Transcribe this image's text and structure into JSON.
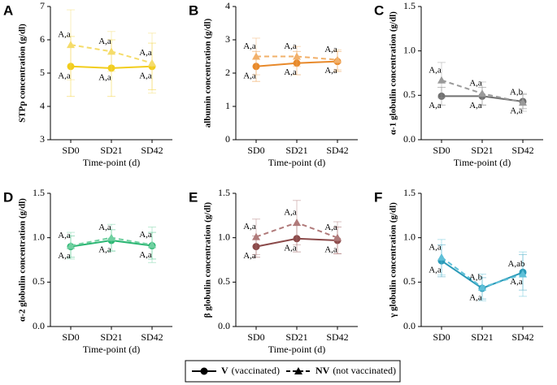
{
  "legend": [
    {
      "name": "V",
      "description": "(vaccinated)",
      "marker": "circle",
      "dashed": false
    },
    {
      "name": "NV",
      "description": "(not vaccinated)",
      "marker": "triangle",
      "dashed": true
    }
  ],
  "chart_data": [
    {
      "type": "line",
      "panel": "A",
      "y_label": "STPp concentration (g/dl)",
      "x_label": "Time-point (d)",
      "categories": [
        "SD0",
        "SD21",
        "SD42"
      ],
      "ylim": [
        3,
        7
      ],
      "yticks": [
        3,
        4,
        5,
        6,
        7
      ],
      "series": [
        {
          "color": "#f2cd1c",
          "values": [
            5.2,
            5.15,
            5.2
          ],
          "errors": [
            0.9,
            0.85,
            0.7
          ],
          "labels": [
            "A,a",
            "A,a",
            "A,a"
          ]
        },
        {
          "color": "#f5dc6a",
          "values": [
            5.85,
            5.65,
            5.3
          ],
          "errors": [
            1.05,
            0.6,
            0.9
          ],
          "labels": [
            "A,a",
            "A,a",
            "A,a"
          ]
        }
      ]
    },
    {
      "type": "line",
      "panel": "B",
      "y_label": "albumin concentration (g/dl)",
      "x_label": "Time-point (d)",
      "categories": [
        "SD0",
        "SD21",
        "SD42"
      ],
      "ylim": [
        0,
        4
      ],
      "yticks": [
        0,
        1,
        2,
        3,
        4
      ],
      "series": [
        {
          "color": "#e8892a",
          "values": [
            2.2,
            2.3,
            2.35
          ],
          "errors": [
            0.45,
            0.35,
            0.3
          ],
          "labels": [
            "A,a",
            "A,a",
            "A,a"
          ]
        },
        {
          "color": "#f2b06a",
          "values": [
            2.5,
            2.5,
            2.4
          ],
          "errors": [
            0.55,
            0.3,
            0.3
          ],
          "labels": [
            "A,a",
            "A,a",
            "A,a"
          ]
        }
      ]
    },
    {
      "type": "line",
      "panel": "C",
      "y_label": "α-1 globulin concentration (g/dl)",
      "x_label": "Time-point (d)",
      "categories": [
        "SD0",
        "SD21",
        "SD42"
      ],
      "ylim": [
        0,
        1.5
      ],
      "yticks": [
        {
          "value": 0,
          "label": "0.0"
        },
        0.5,
        {
          "value": 1,
          "label": "1.0"
        },
        1.5
      ],
      "series": [
        {
          "color": "#707070",
          "values": [
            0.49,
            0.49,
            0.43
          ],
          "errors": [
            0.1,
            0.1,
            0.08
          ],
          "labels": [
            "A,a",
            "A,a",
            "A,a"
          ]
        },
        {
          "color": "#9a9a9a",
          "values": [
            0.67,
            0.52,
            0.42
          ],
          "errors": [
            0.2,
            0.13,
            0.1
          ],
          "labels": [
            "A,a",
            "A,a",
            "A,b"
          ]
        }
      ]
    },
    {
      "type": "line",
      "panel": "D",
      "y_label": "α-2 globulin concentration (g/dl)",
      "x_label": "Time-point (d)",
      "categories": [
        "SD0",
        "SD21",
        "SD42"
      ],
      "ylim": [
        0,
        1.5
      ],
      "yticks": [
        {
          "value": 0,
          "label": "0.0"
        },
        0.5,
        {
          "value": 1,
          "label": "1.0"
        },
        1.5
      ],
      "series": [
        {
          "color": "#2bb673",
          "values": [
            0.9,
            0.97,
            0.91
          ],
          "errors": [
            0.12,
            0.12,
            0.15
          ],
          "labels": [
            "A,a",
            "A,a",
            "A,a"
          ]
        },
        {
          "color": "#6fd0a0",
          "values": [
            0.91,
            1.0,
            0.92
          ],
          "errors": [
            0.15,
            0.15,
            0.2
          ],
          "labels": [
            "A,a",
            "A,a",
            "A,a"
          ]
        }
      ]
    },
    {
      "type": "line",
      "panel": "E",
      "y_label": "β globulin concentration (g/dl)",
      "x_label": "Time-point (d)",
      "categories": [
        "SD0",
        "SD21",
        "SD42"
      ],
      "ylim": [
        0,
        1.5
      ],
      "yticks": [
        {
          "value": 0,
          "label": "0.0"
        },
        0.5,
        {
          "value": 1,
          "label": "1.0"
        },
        1.5
      ],
      "series": [
        {
          "color": "#8b4a4a",
          "values": [
            0.9,
            0.99,
            0.97
          ],
          "errors": [
            0.12,
            0.15,
            0.15
          ],
          "labels": [
            "A,a",
            "A,a",
            "A,a"
          ]
        },
        {
          "color": "#b07a7a",
          "values": [
            1.01,
            1.17,
            1.0
          ],
          "errors": [
            0.2,
            0.25,
            0.18
          ],
          "labels": [
            "A,a",
            "A,a",
            "A,a"
          ]
        }
      ]
    },
    {
      "type": "line",
      "panel": "F",
      "y_label": "γ globulin concentration (g/dl)",
      "categories": [
        "SD0",
        "SD21",
        "SD42"
      ],
      "ylim": [
        0,
        1.5
      ],
      "yticks": [
        {
          "value": 0,
          "label": "0.0"
        },
        0.5,
        {
          "value": 1,
          "label": "1.0"
        },
        1.5
      ],
      "series": [
        {
          "color": "#2a9ab8",
          "values": [
            0.74,
            0.43,
            0.61
          ],
          "errors": [
            0.18,
            0.12,
            0.2
          ],
          "labels": [
            "A,a",
            "A,a",
            "A,a"
          ]
        },
        {
          "color": "#5fc0d8",
          "values": [
            0.78,
            0.44,
            0.59
          ],
          "errors": [
            0.2,
            0.15,
            0.25
          ],
          "labels": [
            "A,a",
            "A,b",
            "A,ab"
          ]
        }
      ]
    }
  ]
}
